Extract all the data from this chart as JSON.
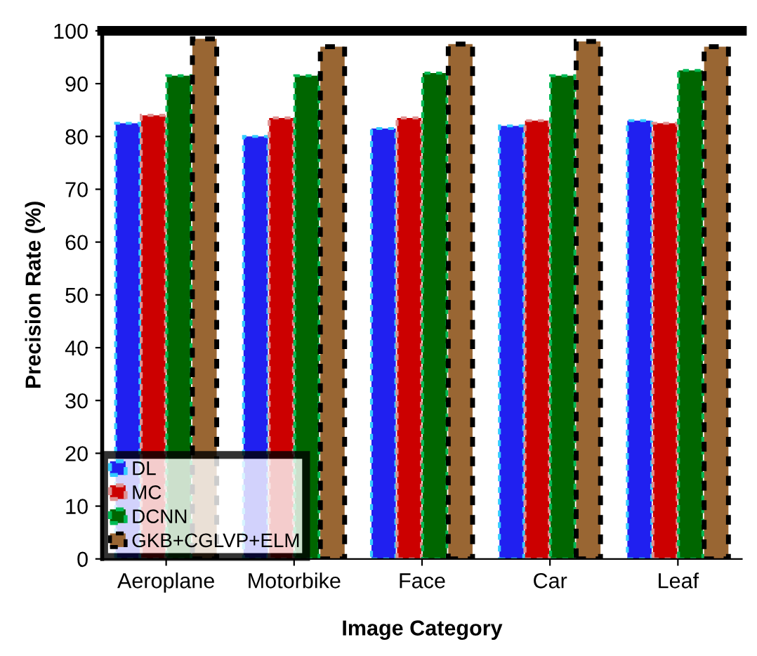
{
  "chart_data": {
    "type": "bar",
    "xlabel": "Image Category",
    "ylabel": "Precision Rate (%)",
    "categories": [
      "Aeroplane",
      "Motorbike",
      "Face",
      "Car",
      "Leaf"
    ],
    "series": [
      {
        "name": "DL",
        "color": "#2020f0",
        "values": [
          82.5,
          80,
          81.5,
          82,
          83
        ]
      },
      {
        "name": "MC",
        "color": "#cc0000",
        "values": [
          84,
          83.5,
          83.5,
          83,
          82.5
        ]
      },
      {
        "name": "DCNN",
        "color": "#006600",
        "values": [
          91.5,
          91.5,
          92,
          91.5,
          92.5
        ]
      },
      {
        "name": "GKB+CGLVP+ELM",
        "color": "#996633",
        "values": [
          98.5,
          97,
          97.5,
          98,
          97
        ]
      }
    ],
    "ylim": [
      0,
      100
    ],
    "yticks": [
      0,
      10,
      20,
      30,
      40,
      50,
      60,
      70,
      80,
      90,
      100
    ],
    "grid": false,
    "legend": "bottom left"
  }
}
